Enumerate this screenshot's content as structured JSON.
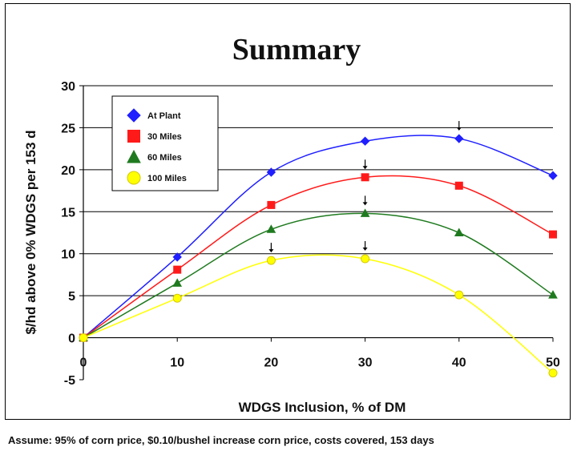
{
  "chart_data": {
    "type": "line",
    "title": "Summary",
    "xlabel": "WDGS Inclusion, % of DM",
    "ylabel": "$/hd above 0% WDGS per 153 d",
    "x": [
      0,
      10,
      20,
      30,
      40,
      50
    ],
    "xlim": [
      0,
      50
    ],
    "ylim": [
      -5,
      30
    ],
    "x_ticks": [
      "0",
      "10",
      "20",
      "30",
      "40",
      "50"
    ],
    "y_ticks": [
      "-5",
      "0",
      "5",
      "10",
      "15",
      "20",
      "25",
      "30"
    ],
    "grid": "horizontal",
    "legend_position": "top-left",
    "series": [
      {
        "name": "At Plant",
        "values": [
          0,
          9.6,
          19.7,
          23.4,
          23.7,
          19.3
        ],
        "color": "#1f1fff",
        "marker": "diamond",
        "optimum_x": 40
      },
      {
        "name": "30 Miles",
        "values": [
          0,
          8.1,
          15.8,
          19.1,
          18.1,
          12.3
        ],
        "color": "#ff1a1a",
        "marker": "square",
        "optimum_x": 30
      },
      {
        "name": "60 Miles",
        "values": [
          0,
          6.5,
          12.9,
          14.8,
          12.5,
          5.1
        ],
        "color": "#1f7a1f",
        "marker": "triangle",
        "optimum_x": 30
      },
      {
        "name": "100 Miles",
        "values": [
          0,
          4.7,
          9.2,
          9.4,
          5.1,
          -4.2
        ],
        "color": "#ffff00",
        "marker": "circle",
        "optimum_x": [
          20,
          30
        ]
      }
    ]
  },
  "footnote": "Assume: 95% of corn price, $0.10/bushel increase corn price, costs covered, 153 days"
}
